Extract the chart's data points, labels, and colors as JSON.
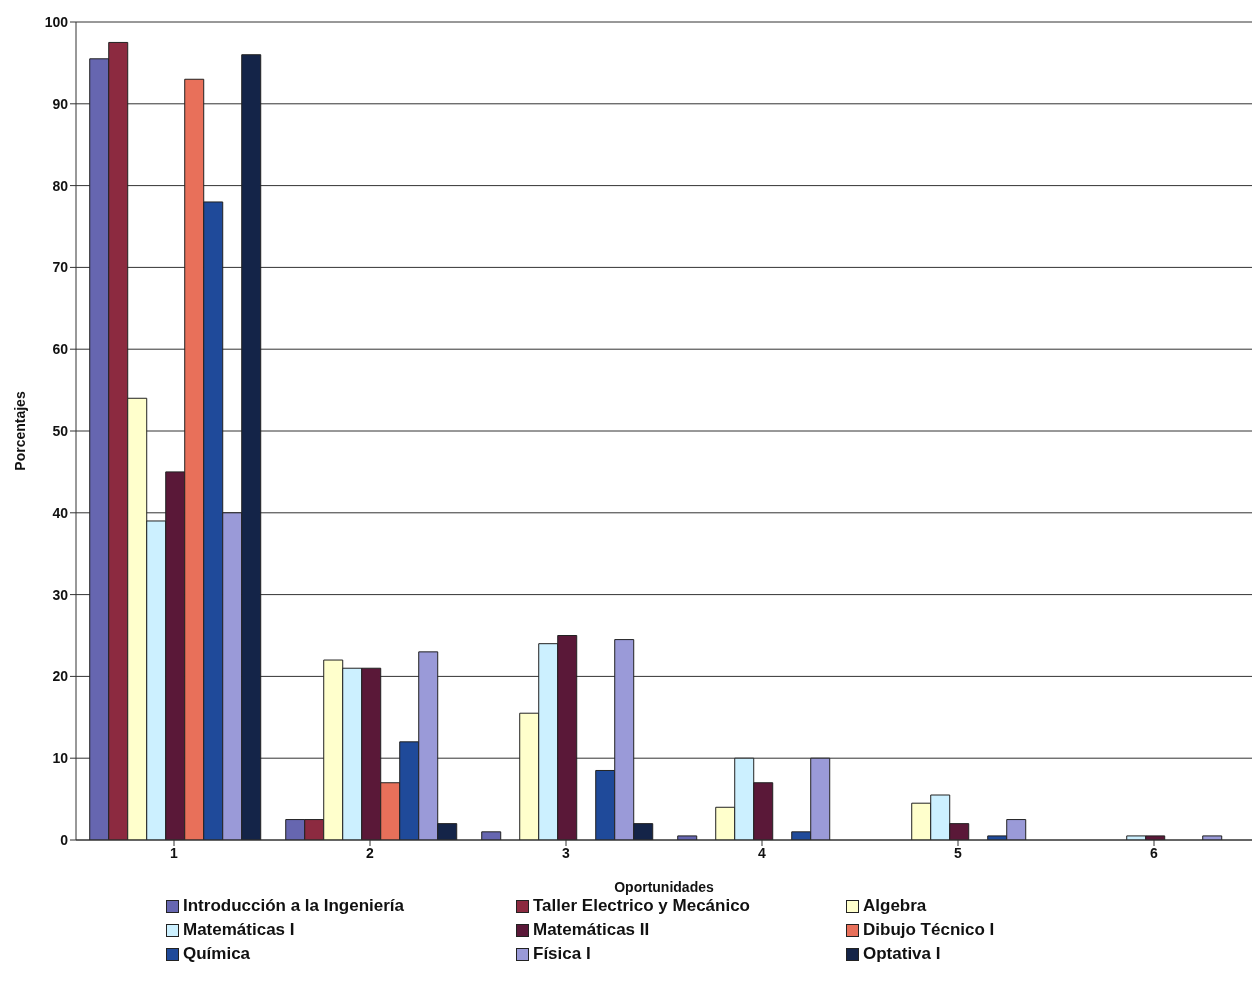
{
  "chart_data": {
    "type": "bar",
    "xlabel": "Oportunidades",
    "ylabel": "Porcentajes",
    "categories": [
      "1",
      "2",
      "3",
      "4",
      "5",
      "6"
    ],
    "series": [
      {
        "name": "Introducción a la Ingeniería",
        "color": "#6666b0",
        "values": [
          95.5,
          2.5,
          1,
          0.5,
          0,
          0
        ]
      },
      {
        "name": "Taller Electrico y Mecánico",
        "color": "#8c2a40",
        "values": [
          97.5,
          2.5,
          0,
          0,
          0,
          0
        ]
      },
      {
        "name": "Algebra",
        "color": "#ffffcc",
        "values": [
          54,
          22,
          15.5,
          4,
          4.5,
          0
        ]
      },
      {
        "name": "Matemáticas I",
        "color": "#ccf0ff",
        "values": [
          39,
          21,
          24,
          10,
          5.5,
          0.5
        ]
      },
      {
        "name": "Matemáticas II",
        "color": "#5a1838",
        "values": [
          45,
          21,
          25,
          7,
          2,
          0.5
        ]
      },
      {
        "name": "Dibujo Técnico I",
        "color": "#e8705a",
        "values": [
          93,
          7,
          0,
          0,
          0,
          0
        ]
      },
      {
        "name": "Química",
        "color": "#1f4a9a",
        "values": [
          78,
          12,
          8.5,
          1,
          0.5,
          0
        ]
      },
      {
        "name": "Física I",
        "color": "#9a9ad8",
        "values": [
          40,
          23,
          24.5,
          10,
          2.5,
          0.5
        ]
      },
      {
        "name": "Optativa I",
        "color": "#142448",
        "values": [
          96,
          2,
          2,
          0,
          0,
          0
        ]
      }
    ],
    "ylim": [
      0,
      100
    ],
    "yticks": [
      0,
      10,
      20,
      30,
      40,
      50,
      60,
      70,
      80,
      90,
      100
    ],
    "grid": "y",
    "legend": "bottom"
  }
}
